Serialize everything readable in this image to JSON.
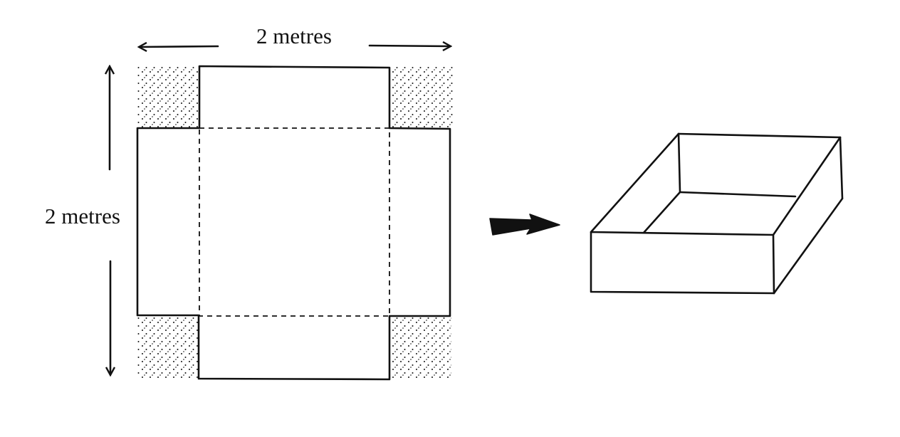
{
  "diagram": {
    "width_label": "2 metres",
    "height_label": "2 metres"
  },
  "colors": {
    "ink": "#111111",
    "paper": "#ffffff"
  }
}
